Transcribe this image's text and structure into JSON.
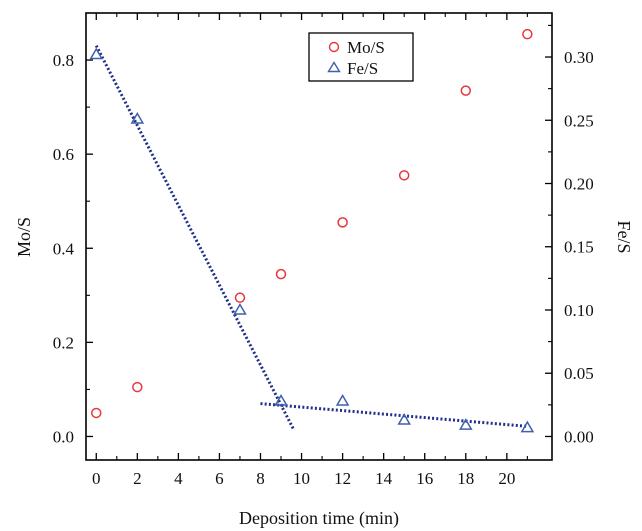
{
  "chart_data": {
    "type": "scatter",
    "xlabel": "Deposition time (min)",
    "ylabel_left": "Mo/S",
    "ylabel_right": "Fe/S",
    "xlim": [
      -0.5,
      22.2
    ],
    "ylim_left": [
      -0.05,
      0.9
    ],
    "ylim_right": [
      -0.0186,
      0.3348
    ],
    "x_ticks": [
      "0",
      "2",
      "4",
      "6",
      "8",
      "10",
      "12",
      "14",
      "16",
      "18",
      "20"
    ],
    "y_left_ticks": [
      "0.0",
      "0.2",
      "0.4",
      "0.6",
      "0.8"
    ],
    "y_right_ticks": [
      "0.00",
      "0.05",
      "0.10",
      "0.15",
      "0.20",
      "0.25",
      "0.30"
    ],
    "grid": false,
    "legend_position": "top-center",
    "series": [
      {
        "name": "Mo/S",
        "axis": "left",
        "marker": "circle",
        "color": "#e8363a",
        "x": [
          0,
          2,
          7,
          9,
          12,
          15,
          18,
          21
        ],
        "y": [
          0.05,
          0.105,
          0.295,
          0.345,
          0.455,
          0.555,
          0.735,
          0.855
        ]
      },
      {
        "name": "Fe/S",
        "axis": "right",
        "marker": "triangle",
        "color": "#3f5fae",
        "x": [
          0,
          2,
          7,
          9,
          12,
          15,
          18,
          21
        ],
        "y": [
          0.302,
          0.251,
          0.1,
          0.028,
          0.028,
          0.013,
          0.009,
          0.007
        ]
      }
    ],
    "fit_lines": [
      {
        "axis": "right",
        "color": "#1f2f8a",
        "x": [
          0,
          9.6
        ],
        "y": [
          0.309,
          0.006
        ]
      },
      {
        "axis": "right",
        "color": "#1f2f8a",
        "x": [
          8,
          21
        ],
        "y": [
          0.026,
          0.008
        ]
      }
    ]
  }
}
